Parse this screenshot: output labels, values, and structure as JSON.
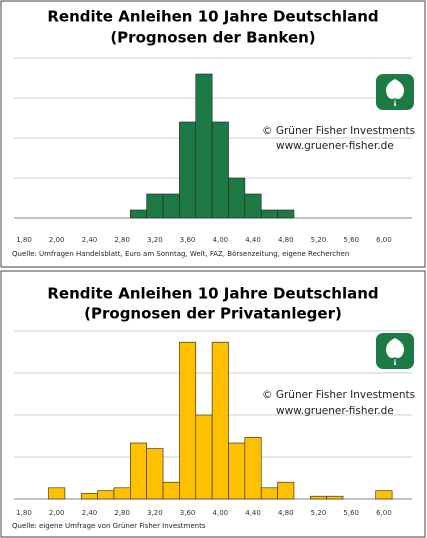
{
  "chart_data": [
    {
      "type": "bar",
      "title": "Rendite Anleihen 10 Jahre Deutschland",
      "subtitle": "(Prognosen der Banken)",
      "categories": [
        "1,80",
        null,
        "2,00",
        null,
        "2,40",
        null,
        "2,80",
        null,
        "3,20",
        null,
        "3,60",
        null,
        "4,00",
        null,
        "4,40",
        null,
        "4,80",
        null,
        "5,20",
        null,
        "5,60",
        null,
        "6,00"
      ],
      "values": [
        0,
        0,
        0,
        0,
        0,
        0,
        0,
        1,
        3,
        3,
        12,
        18,
        12,
        5,
        3,
        1,
        1,
        0,
        0,
        0,
        0,
        0,
        0
      ],
      "color": "#1e7a45",
      "ylim": [
        0,
        20
      ],
      "grid": true,
      "annotations": [
        "© Grüner Fisher Investments",
        "www.gruener-fisher.de"
      ],
      "source": "Quelle: Umfragen Handelsblatt, Euro am Sonntag, Welt, FAZ, Börsenzeitung, eigene Recherchen"
    },
    {
      "type": "bar",
      "title": "Rendite Anleihen 10 Jahre Deutschland",
      "subtitle": "(Prognosen der Privatanleger)",
      "categories": [
        "1,80",
        null,
        "2,00",
        null,
        "2,40",
        null,
        "2,80",
        null,
        "3,20",
        null,
        "3,60",
        null,
        "4,00",
        null,
        "4,40",
        null,
        "4,80",
        null,
        "5,20",
        null,
        "5,60",
        null,
        "6,00"
      ],
      "values": [
        0,
        0,
        2,
        0,
        1,
        1.5,
        2,
        10,
        9,
        3,
        28,
        15,
        28,
        10,
        11,
        2,
        3,
        0,
        0.5,
        0.5,
        0,
        0,
        1.5
      ],
      "color": "#ffc000",
      "ylim": [
        0,
        30
      ],
      "grid": true,
      "annotations": [
        "© Grüner Fisher Investments",
        "www.gruener-fisher.de"
      ],
      "source": "Quelle: eigene Umfrage von Grüner Fisher Investments"
    }
  ]
}
